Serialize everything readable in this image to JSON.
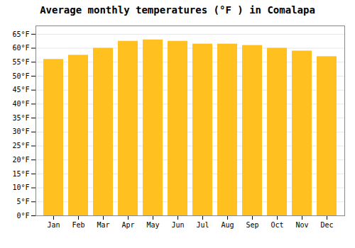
{
  "chart_data": {
    "type": "bar",
    "title": "Average monthly temperatures (°F ) in Comalapa",
    "categories": [
      "Jan",
      "Feb",
      "Mar",
      "Apr",
      "May",
      "Jun",
      "Jul",
      "Aug",
      "Sep",
      "Oct",
      "Nov",
      "Dec"
    ],
    "values": [
      56.0,
      57.5,
      60.0,
      62.5,
      63.0,
      62.5,
      61.5,
      61.5,
      61.0,
      60.0,
      59.0,
      57.0
    ],
    "color": "#FFC020",
    "ylim": [
      0,
      68
    ],
    "yticks": [
      {
        "value": 0,
        "label": "0°F"
      },
      {
        "value": 5,
        "label": "5°F"
      },
      {
        "value": 10,
        "label": "10°F"
      },
      {
        "value": 15,
        "label": "15°F"
      },
      {
        "value": 20,
        "label": "20°F"
      },
      {
        "value": 25,
        "label": "25°F"
      },
      {
        "value": 30,
        "label": "30°F"
      },
      {
        "value": 35,
        "label": "35°F"
      },
      {
        "value": 40,
        "label": "40°F"
      },
      {
        "value": 45,
        "label": "45°F"
      },
      {
        "value": 50,
        "label": "50°F"
      },
      {
        "value": 55,
        "label": "55°F"
      },
      {
        "value": 60,
        "label": "60°F"
      },
      {
        "value": 65,
        "label": "65°F"
      }
    ],
    "grid": true
  }
}
